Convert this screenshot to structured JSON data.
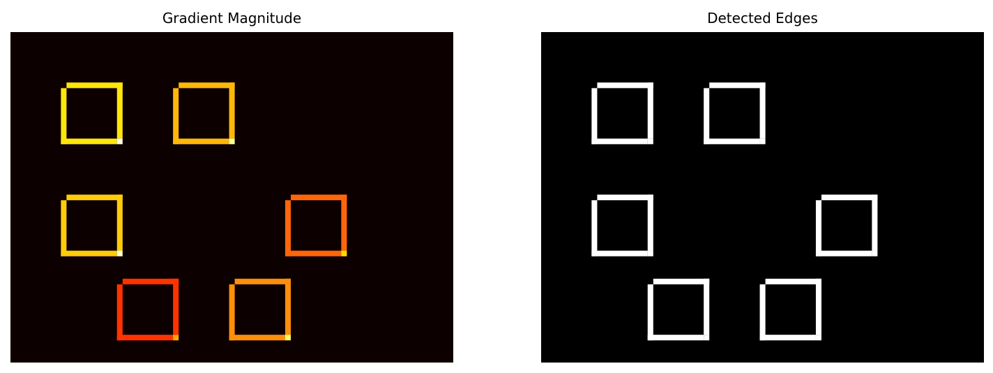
{
  "chart_data": [
    {
      "type": "heatmap",
      "title": "Gradient Magnitude",
      "colormap": "hot",
      "background_color": "#0d0000",
      "axes": "off",
      "squares": [
        {
          "row": 0,
          "col": 0,
          "color": "#ffe60a",
          "corner_color": "#ffffe8"
        },
        {
          "row": 0,
          "col": 1,
          "color": "#ffb70a",
          "corner_color": "#ffff9a"
        },
        {
          "row": 1,
          "col": 0,
          "color": "#ffcc0a",
          "corner_color": "#ffffc8"
        },
        {
          "row": 1,
          "col": 2,
          "color": "#ff660a",
          "corner_color": "#ffdd00"
        },
        {
          "row": 2,
          "col": 0.5,
          "color": "#ff3300",
          "corner_color": "#ffaa00"
        },
        {
          "row": 2,
          "col": 1.5,
          "color": "#ff8f0a",
          "corner_color": "#ffff66"
        }
      ]
    },
    {
      "type": "heatmap",
      "title": "Detected Edges",
      "colormap": "gray",
      "background_color": "#000000",
      "axes": "off",
      "squares": [
        {
          "row": 0,
          "col": 0,
          "color": "#ffffff"
        },
        {
          "row": 0,
          "col": 1,
          "color": "#ffffff"
        },
        {
          "row": 1,
          "col": 0,
          "color": "#ffffff"
        },
        {
          "row": 1,
          "col": 2,
          "color": "#ffffff"
        },
        {
          "row": 2,
          "col": 0.5,
          "color": "#ffffff"
        },
        {
          "row": 2,
          "col": 1.5,
          "color": "#ffffff"
        }
      ]
    }
  ]
}
